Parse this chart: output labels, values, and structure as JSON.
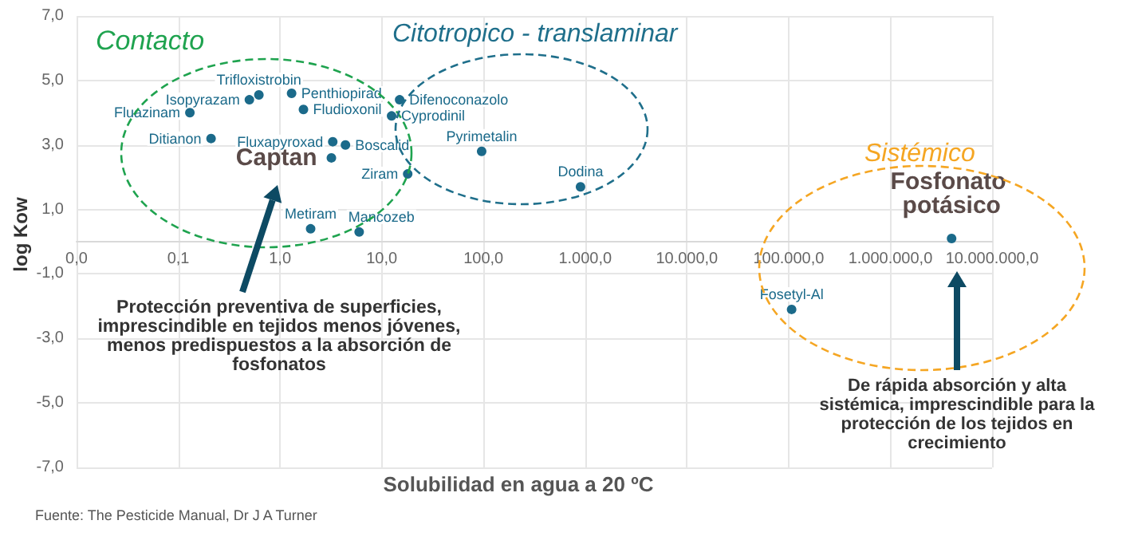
{
  "chart_data": {
    "type": "scatter",
    "xlabel": "Solubilidad en agua a 20 ºC",
    "ylabel": "log Kow",
    "log": "x",
    "grid": true,
    "legend": false,
    "marker": "circle",
    "xlim": [
      0.01,
      10000000
    ],
    "ylim": [
      -7,
      7
    ],
    "xticks": [
      {
        "value": 0.01,
        "label": "0,0"
      },
      {
        "value": 0.1,
        "label": "0,1"
      },
      {
        "value": 1,
        "label": "1,0"
      },
      {
        "value": 10,
        "label": "10,0"
      },
      {
        "value": 100,
        "label": "100,0"
      },
      {
        "value": 1000,
        "label": "1.000,0"
      },
      {
        "value": 10000,
        "label": "10.000,0"
      },
      {
        "value": 100000,
        "label": "100.000,0"
      },
      {
        "value": 1000000,
        "label": "1.000.000,0"
      },
      {
        "value": 10000000,
        "label": "10.000.000,0"
      }
    ],
    "yticks": [
      {
        "value": -7,
        "label": "-7,0"
      },
      {
        "value": -5,
        "label": "-5,0"
      },
      {
        "value": -3,
        "label": "-3,0"
      },
      {
        "value": -1,
        "label": "-1,0"
      },
      {
        "value": 1,
        "label": "1,0"
      },
      {
        "value": 3,
        "label": "3,0"
      },
      {
        "value": 5,
        "label": "5,0"
      },
      {
        "value": 7,
        "label": "7,0"
      }
    ],
    "series": [
      {
        "name": "Fluazinam",
        "color": "#1b6a8a",
        "x": [
          0.13
        ],
        "values": [
          4.0
        ]
      },
      {
        "name": "Ditianon",
        "color": "#1b6a8a",
        "x": [
          0.21
        ],
        "values": [
          3.2
        ]
      },
      {
        "name": "Trifloxistrobin",
        "color": "#1b6a8a",
        "x": [
          0.62
        ],
        "values": [
          4.55
        ]
      },
      {
        "name": "Isopyrazam",
        "color": "#1b6a8a",
        "x": [
          0.5
        ],
        "values": [
          4.4
        ]
      },
      {
        "name": "Penthiopirad",
        "color": "#1b6a8a",
        "x": [
          1.3
        ],
        "values": [
          4.6
        ]
      },
      {
        "name": "Fludioxonil",
        "color": "#1b6a8a",
        "x": [
          1.7
        ],
        "values": [
          4.1
        ]
      },
      {
        "name": "Fluxapyroxad",
        "color": "#1b6a8a",
        "x": [
          3.3
        ],
        "values": [
          3.1
        ]
      },
      {
        "name": "Boscalid",
        "color": "#1b6a8a",
        "x": [
          4.4
        ],
        "values": [
          3.0
        ]
      },
      {
        "name": "Captan",
        "color": "#1b6a8a",
        "x": [
          3.2
        ],
        "values": [
          2.6
        ]
      },
      {
        "name": "Difenoconazolo",
        "color": "#1b6a8a",
        "x": [
          15
        ],
        "values": [
          4.4
        ]
      },
      {
        "name": "Cyprodinil",
        "color": "#1b6a8a",
        "x": [
          12.5
        ],
        "values": [
          3.9
        ]
      },
      {
        "name": "Pyrimetalin",
        "color": "#1b6a8a",
        "x": [
          96
        ],
        "values": [
          2.8
        ]
      },
      {
        "name": "Dodina",
        "color": "#1b6a8a",
        "x": [
          900
        ],
        "values": [
          1.7
        ]
      },
      {
        "name": "Ziram",
        "color": "#1b6a8a",
        "x": [
          18
        ],
        "values": [
          2.1
        ]
      },
      {
        "name": "Metiram",
        "color": "#1b6a8a",
        "x": [
          2.0
        ],
        "values": [
          0.4
        ]
      },
      {
        "name": "Mancozeb",
        "color": "#1b6a8a",
        "x": [
          6.0
        ],
        "values": [
          0.3
        ]
      },
      {
        "name": "Fosetyl-Al",
        "color": "#1b6a8a",
        "x": [
          107000
        ],
        "values": [
          -2.1
        ]
      },
      {
        "name": "Fosfonato potásico",
        "color": "#1b6a8a",
        "x": [
          4000000
        ],
        "values": [
          0.1
        ]
      }
    ],
    "annotations": [
      "Contacto",
      "Citotropico - translaminar",
      "Sistémico",
      "Protección preventiva de superficies, imprescindible en tejidos menos jóvenes, menos predispuestos a la absorción de fosfonatos",
      "De rápida absorción y alta sistémica, imprescindible para la protección de los tejidos en crecimiento",
      "Fuente: The Pesticide Manual, Dr J A Turner"
    ]
  }
}
